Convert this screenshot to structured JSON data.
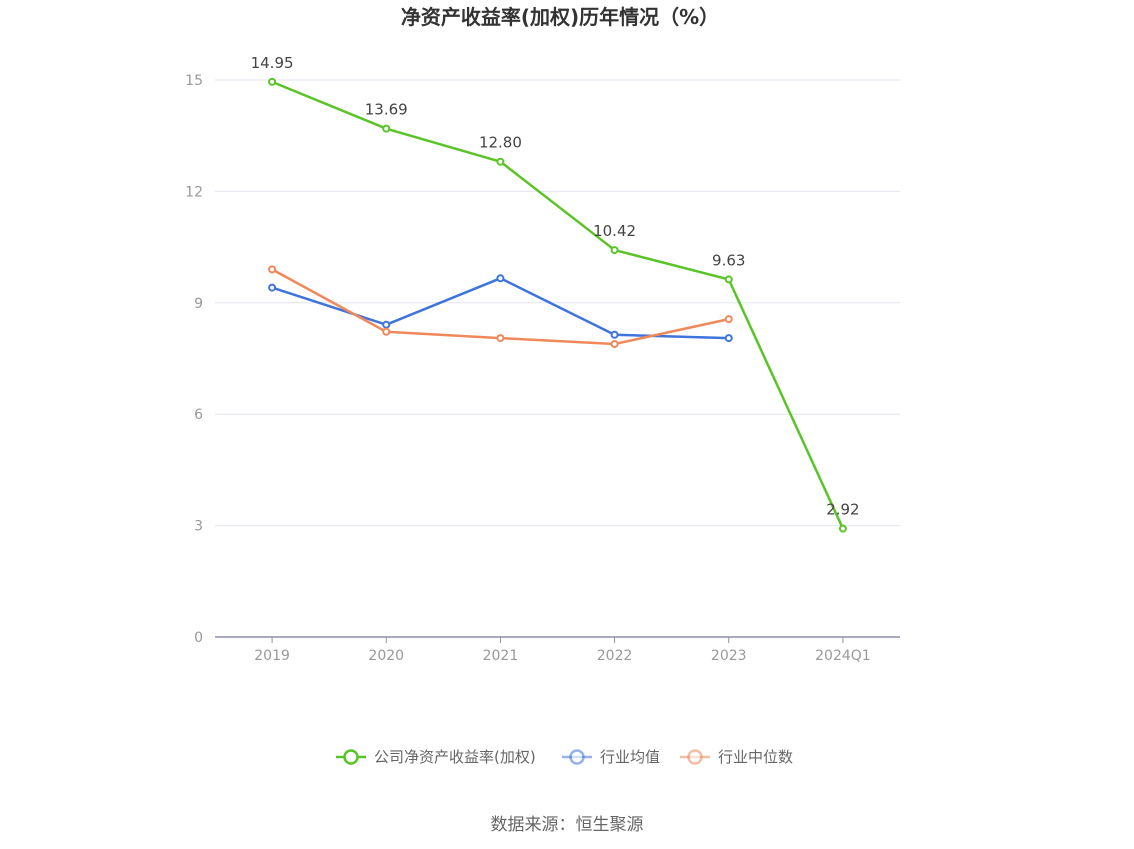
{
  "chart_data": {
    "type": "line",
    "title": "净资产收益率(加权)历年情况（%）",
    "xlabel": "",
    "ylabel": "",
    "categories": [
      "2019",
      "2020",
      "2021",
      "2022",
      "2023",
      "2024Q1"
    ],
    "ylim": [
      0,
      15
    ],
    "yticks": [
      0,
      3,
      6,
      9,
      12,
      15
    ],
    "grid": true,
    "legend_position": "bottom",
    "series": [
      {
        "name": "公司净资产收益率(加权)",
        "color": "#5ac427",
        "values": [
          14.95,
          13.69,
          12.8,
          10.42,
          9.63,
          2.92
        ],
        "data_labels": [
          "14.95",
          "13.69",
          "12.80",
          "10.42",
          "9.63",
          "2.92"
        ]
      },
      {
        "name": "行业均值",
        "color": "#3f74db",
        "values": [
          9.41,
          8.41,
          9.66,
          8.14,
          8.05,
          null
        ]
      },
      {
        "name": "行业中位数",
        "color": "#f0885a",
        "values": [
          9.9,
          8.22,
          8.05,
          7.89,
          8.56,
          null
        ]
      }
    ]
  },
  "source": "数据来源：恒生聚源"
}
